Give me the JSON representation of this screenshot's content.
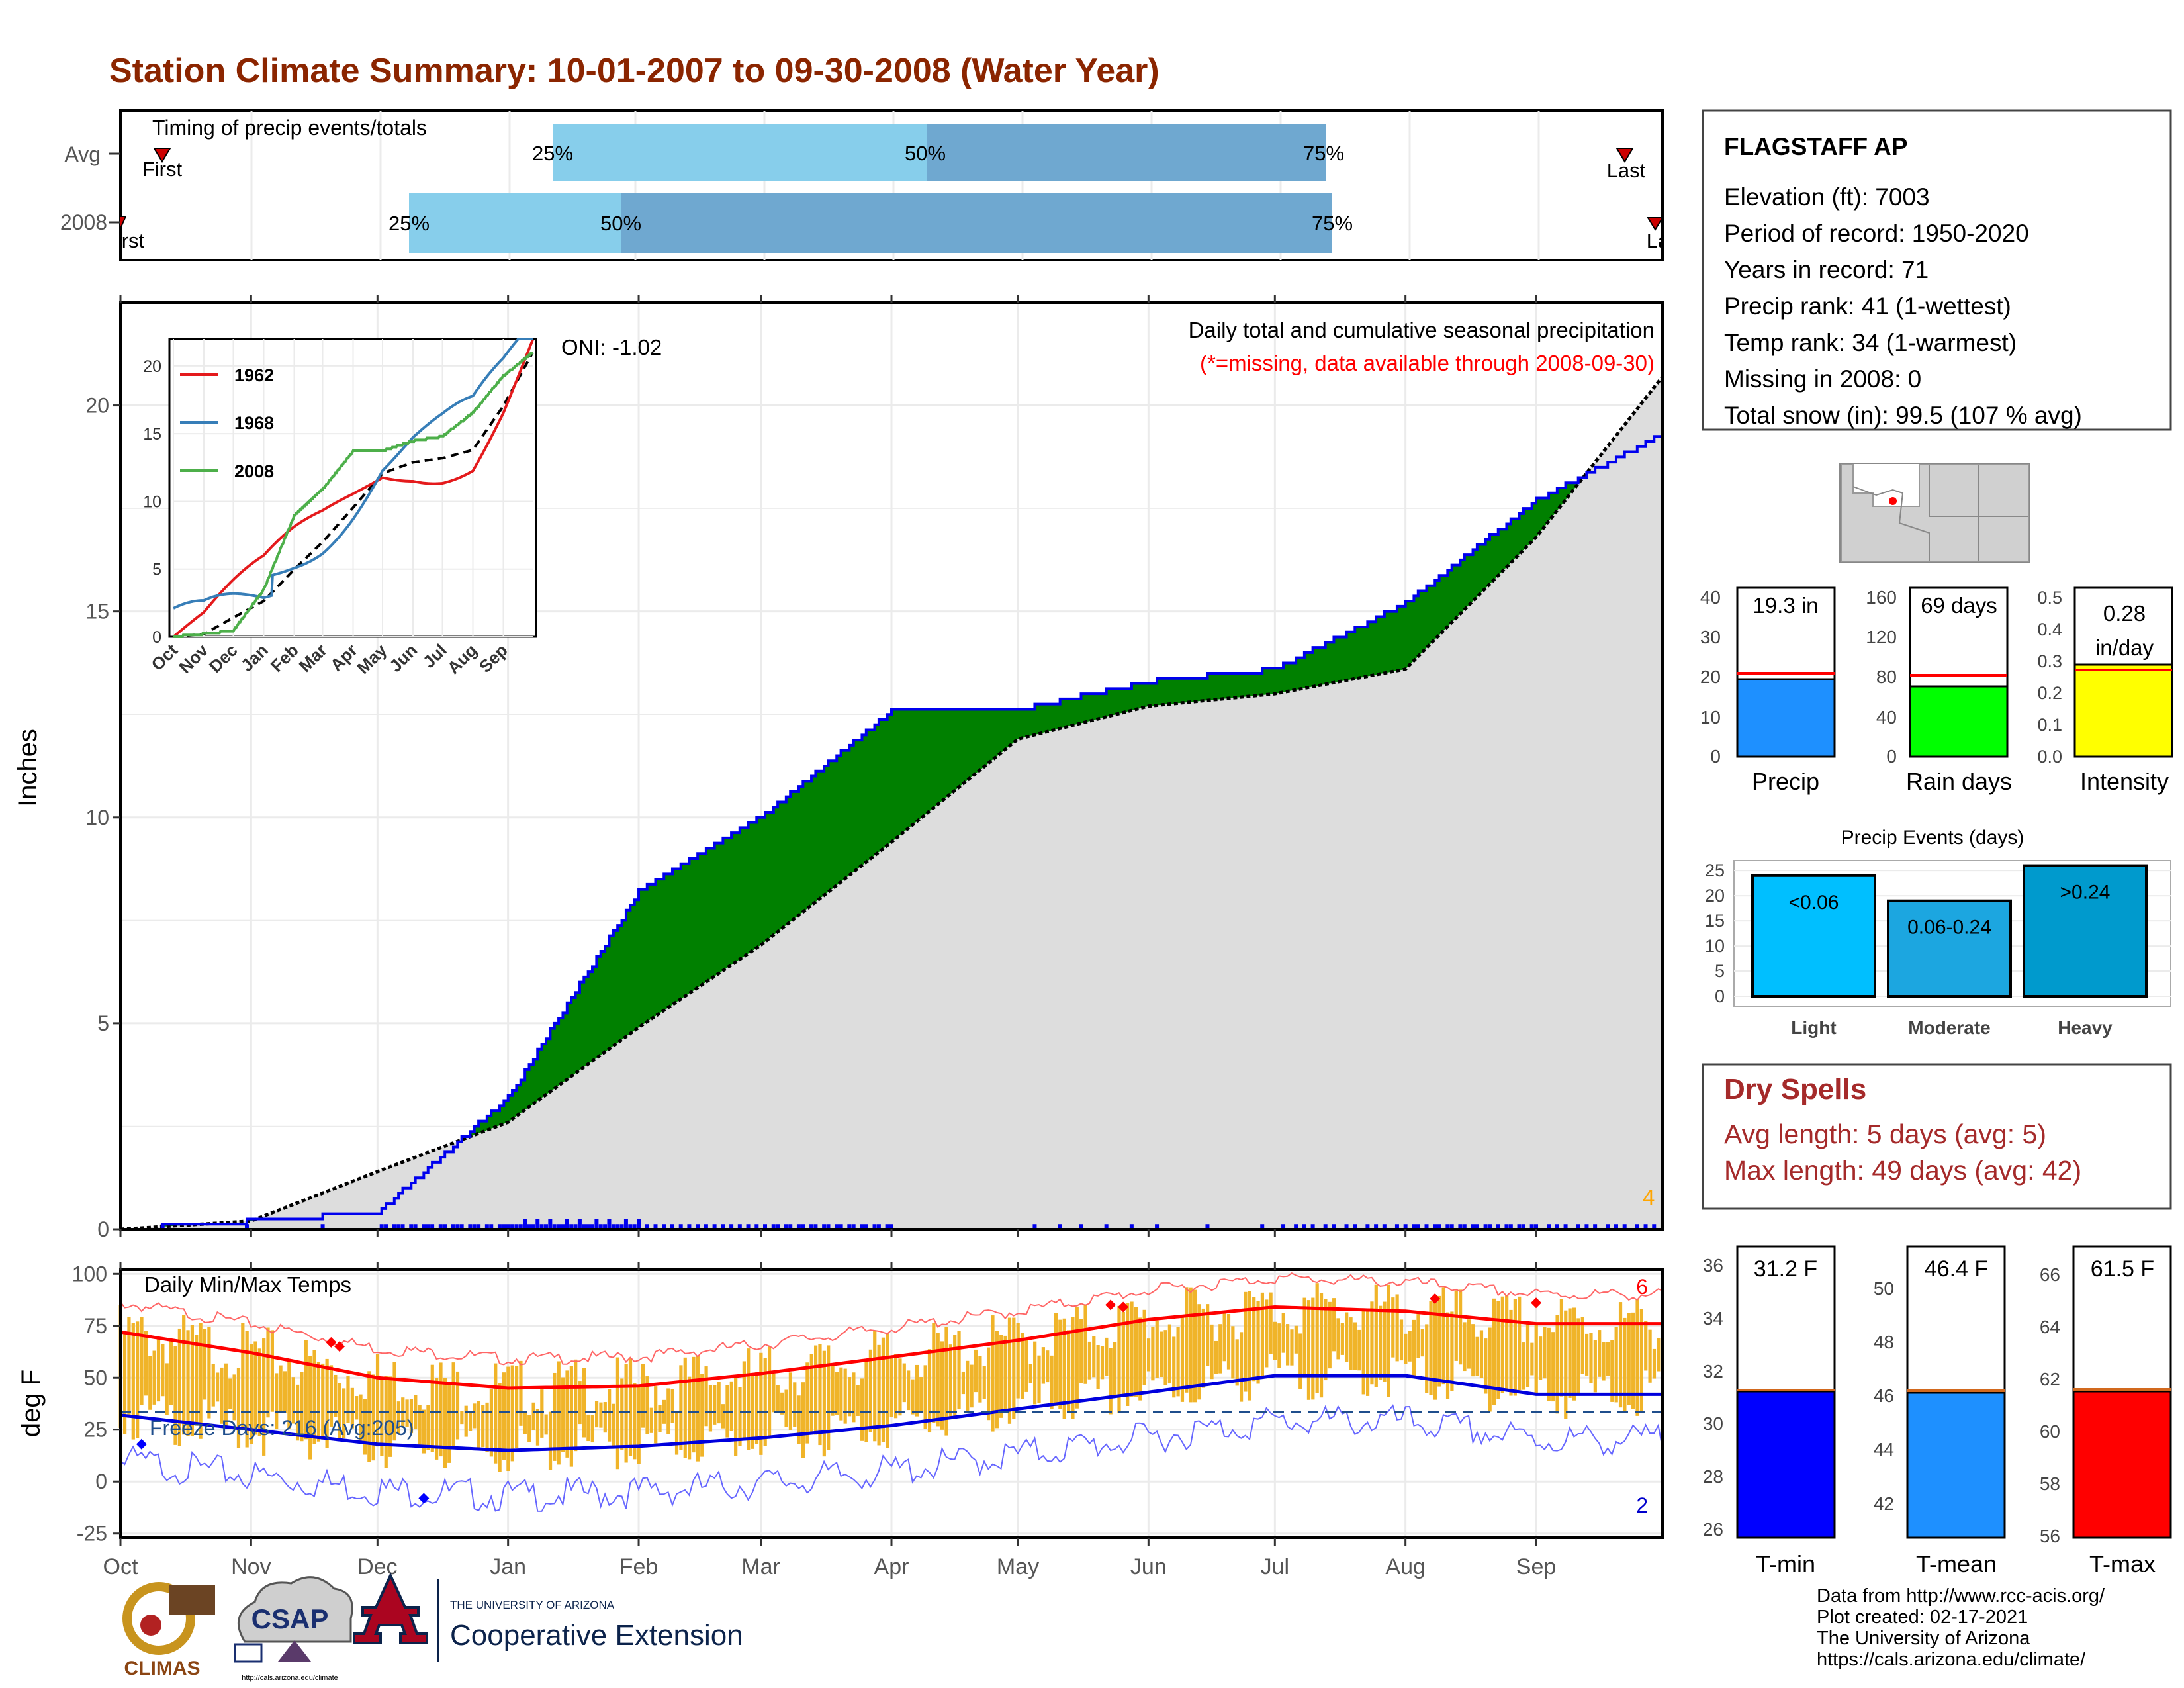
{
  "title": "Station Climate Summary: 10-01-2007 to 09-30-2008 (Water Year)",
  "colors": {
    "title": "#8B2500",
    "wet": "#008000",
    "dry": "#7B4F0B",
    "fill": "#dddddd",
    "blue": "#0000ee",
    "gold": "#F0B429",
    "red": "#ff0000",
    "light_blue": "#87CEEB",
    "mid_blue": "#6FA8D0"
  },
  "timing": {
    "label": "Timing of precip events/totals",
    "rows": [
      {
        "name": "Avg",
        "first": "First",
        "last": "Last",
        "q25": "25%",
        "q50": "50%",
        "q75": "75%"
      },
      {
        "name": "2008",
        "first": "First",
        "last": "Last",
        "q25": "25%",
        "q50": "50%",
        "q75": "75%"
      }
    ]
  },
  "station": {
    "name": "FLAGSTAFF AP",
    "lines": [
      "Elevation (ft): 7003",
      "Period of record: 1950-2020",
      "Years in record: 71",
      "Precip rank: 41 (1-wettest)",
      "Temp rank: 34 (1-warmest)",
      "Missing in 2008: 0",
      "Total snow (in): 99.5 (107 % avg)"
    ]
  },
  "precip_panel": {
    "ylabel": "Inches",
    "yticks": [
      "0",
      "5",
      "10",
      "15",
      "20"
    ],
    "months": [
      "Oct",
      "Nov",
      "Dec",
      "Jan",
      "Feb",
      "Mar",
      "Apr",
      "May",
      "Jun",
      "Jul",
      "Aug",
      "Sep"
    ],
    "oni": "ONI: -1.02",
    "note1": "Daily total and cumulative seasonal precipitation",
    "note2": "(*=missing, data available through 2008-09-30)",
    "count": "4"
  },
  "inset": {
    "legend": [
      "1962",
      "1968",
      "2008"
    ],
    "yticks": [
      "0",
      "5",
      "10",
      "15",
      "20"
    ],
    "months": [
      "Oct",
      "Nov",
      "Dec",
      "Jan",
      "Feb",
      "Mar",
      "Apr",
      "May",
      "Jun",
      "Jul",
      "Aug",
      "Sep"
    ]
  },
  "temp_panel": {
    "ylabel": "deg F",
    "title": "Daily Min/Max Temps",
    "freeze": "Freeze Days: 216 (Avg:205)",
    "yticks": [
      "100",
      "75",
      "50",
      "25",
      "0",
      "-25"
    ],
    "hot_count": "6",
    "cold_count": "2"
  },
  "small_bars": {
    "precip": {
      "label": "Precip",
      "value_text": "19.3 in",
      "yticks": [
        "0",
        "10",
        "20",
        "30",
        "40"
      ]
    },
    "raindays": {
      "label": "Rain days",
      "value_text": "69 days",
      "yticks": [
        "0",
        "40",
        "80",
        "120",
        "160"
      ]
    },
    "intensity": {
      "label": "Intensity",
      "value_text1": "0.28",
      "value_text2": "in/day",
      "yticks": [
        "0.0",
        "0.1",
        "0.2",
        "0.3",
        "0.4",
        "0.5"
      ]
    }
  },
  "events": {
    "title": "Precip Events (days)",
    "yticks": [
      "0",
      "5",
      "10",
      "15",
      "20",
      "25"
    ],
    "bars": [
      {
        "label": "Light",
        "text": "<0.06"
      },
      {
        "label": "Moderate",
        "text": "0.06-0.24"
      },
      {
        "label": "Heavy",
        "text": ">0.24"
      }
    ]
  },
  "dry_spells": {
    "title": "Dry Spells",
    "avg": "Avg length: 5 days (avg: 5)",
    "max": "Max length: 49 days (avg: 42)"
  },
  "temp_bars": {
    "tmin": {
      "label": "T-min",
      "value_text": "31.2 F",
      "yticks": [
        "26",
        "28",
        "30",
        "32",
        "34",
        "36"
      ]
    },
    "tmean": {
      "label": "T-mean",
      "value_text": "46.4 F",
      "yticks": [
        "42",
        "44",
        "46",
        "48",
        "50"
      ]
    },
    "tmax": {
      "label": "T-max",
      "value_text": "61.5 F",
      "yticks": [
        "56",
        "58",
        "60",
        "62",
        "64",
        "66"
      ]
    }
  },
  "footer": {
    "lines": [
      "Data from http://www.rcc-acis.org/",
      "Plot created: 02-17-2021",
      "The University of Arizona",
      "https://cals.arizona.edu/climate/"
    ],
    "logo1": "CLIMAS",
    "logo2": "CSAP",
    "logo2_url": "http://cals.arizona.edu/climate",
    "logo3_a": "THE UNIVERSITY OF ARIZONA",
    "logo3_b": "Cooperative Extension"
  },
  "chart_data": [
    {
      "type": "area",
      "title": "Daily total and cumulative seasonal precipitation",
      "ylabel": "Inches",
      "ylim": [
        0,
        22.5
      ],
      "x": [
        "Oct",
        "Nov",
        "Dec",
        "Jan",
        "Feb",
        "Mar",
        "Apr",
        "May",
        "Jun",
        "Jul",
        "Aug",
        "Sep"
      ],
      "series": [
        {
          "name": "2008",
          "values": [
            0.2,
            0.4,
            3.2,
            8.2,
            10.0,
            12.6,
            12.6,
            13.3,
            13.6,
            15.2,
            17.7,
            19.3
          ]
        },
        {
          "name": "Avg",
          "values": [
            0.2,
            1.4,
            2.6,
            4.9,
            6.9,
            9.4,
            11.9,
            12.7,
            13.0,
            13.6,
            16.8,
            20.7
          ]
        }
      ]
    },
    {
      "type": "line",
      "title": "Daily Min/Max Temps",
      "ylabel": "deg F",
      "ylim": [
        -27,
        102
      ],
      "x": [
        "Oct",
        "Nov",
        "Dec",
        "Jan",
        "Feb",
        "Mar",
        "Apr",
        "May",
        "Jun",
        "Jul",
        "Aug",
        "Sep"
      ],
      "series": [
        {
          "name": "Avg max",
          "values": [
            70,
            62,
            50,
            45,
            46,
            52,
            60,
            68,
            78,
            84,
            82,
            76
          ]
        },
        {
          "name": "Avg min",
          "values": [
            32,
            25,
            18,
            15,
            17,
            21,
            27,
            35,
            43,
            51,
            51,
            42
          ]
        }
      ]
    },
    {
      "type": "bar",
      "categories": [
        "Light",
        "Moderate",
        "Heavy"
      ],
      "values": [
        24,
        19,
        26
      ],
      "ylim": [
        0,
        27
      ]
    }
  ]
}
